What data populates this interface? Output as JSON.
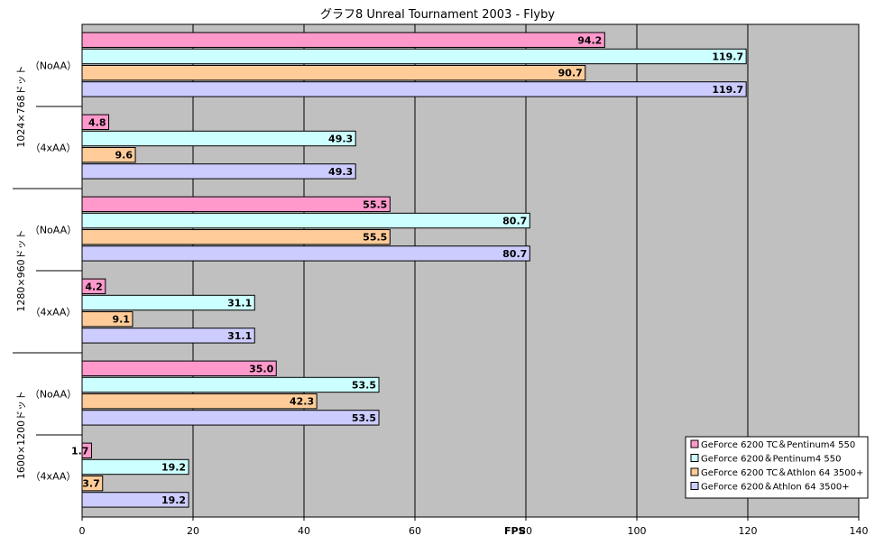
{
  "chart_data": {
    "type": "bar",
    "orientation": "horizontal",
    "title": "グラフ8  Unreal Tournament 2003 - Flyby",
    "xlabel": "FPS",
    "xlim": [
      0,
      140
    ],
    "xticks": [
      0,
      20,
      40,
      60,
      80,
      100,
      120,
      140
    ],
    "grid": "vertical major gridlines",
    "plot_background": "#c0c0c0",
    "legend_position": "bottom-right",
    "groups": [
      {
        "label": "1024×768ドット",
        "subgroups": [
          {
            "label": "（NoAA）",
            "values": [
              94.2,
              119.7,
              90.7,
              119.7
            ]
          },
          {
            "label": "（4xAA）",
            "values": [
              4.8,
              49.3,
              9.6,
              49.3
            ]
          }
        ]
      },
      {
        "label": "1280×960ドット",
        "subgroups": [
          {
            "label": "（NoAA）",
            "values": [
              55.5,
              80.7,
              55.5,
              80.7
            ]
          },
          {
            "label": "（4xAA）",
            "values": [
              4.2,
              31.1,
              9.1,
              31.1
            ]
          }
        ]
      },
      {
        "label": "1600×1200ドット",
        "subgroups": [
          {
            "label": "（NoAA）",
            "values": [
              35.0,
              53.5,
              42.3,
              53.5
            ]
          },
          {
            "label": "（4xAA）",
            "values": [
              1.7,
              19.2,
              3.7,
              19.2
            ]
          }
        ]
      }
    ],
    "series": [
      {
        "name": "GeForce 6200  TC＆Pentinum4 550",
        "color": "#ff99cc"
      },
      {
        "name": "GeForce 6200＆Pentinum4 550",
        "color": "#ccffff"
      },
      {
        "name": "GeForce 6200  TC＆Athlon 64 3500+",
        "color": "#ffcc99"
      },
      {
        "name": "GeForce 6200＆Athlon 64 3500+",
        "color": "#ccccff"
      }
    ]
  }
}
